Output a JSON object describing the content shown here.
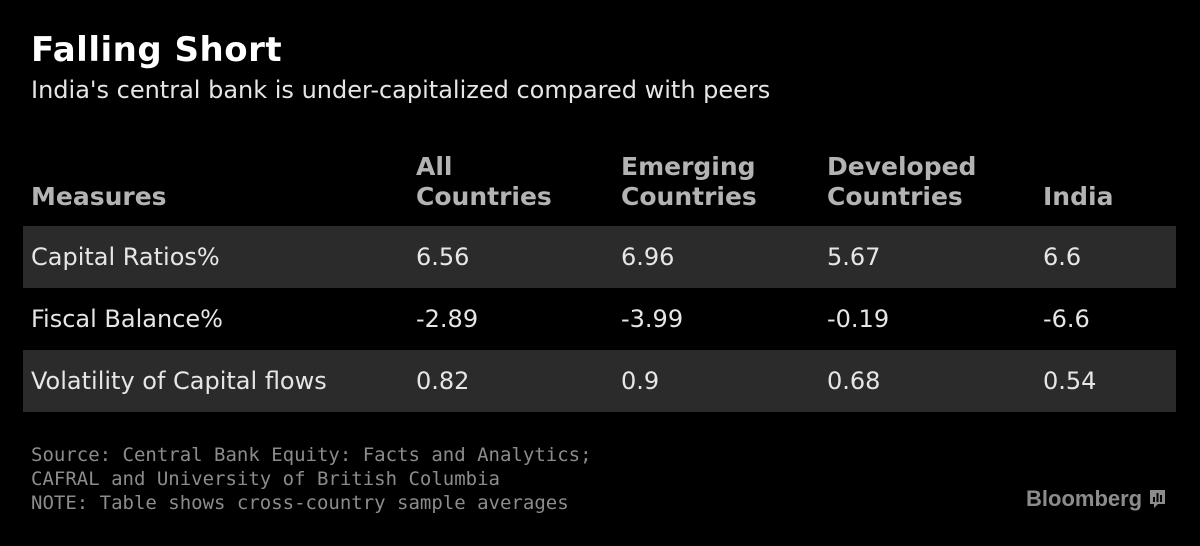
{
  "header": {
    "title": "Falling Short",
    "subtitle": "India's central bank is under-capitalized compared with peers"
  },
  "chart_data": {
    "type": "table",
    "columns": [
      "Measures",
      "All\nCountries",
      "Emerging\nCountries",
      "Developed\nCountries",
      "India"
    ],
    "rows": [
      {
        "measure": "Capital Ratios%",
        "values": [
          "6.56",
          "6.96",
          "5.67",
          "6.6"
        ]
      },
      {
        "measure": "Fiscal Balance%",
        "values": [
          "-2.89",
          "-3.99",
          "-0.19",
          "-6.6"
        ]
      },
      {
        "measure": "Volatility of Capital flows",
        "values": [
          "0.82",
          "0.9",
          "0.68",
          "0.54"
        ]
      }
    ],
    "row_shading": [
      "#2b2b2b",
      "#000000",
      "#2b2b2b"
    ]
  },
  "footer": {
    "source_line1": "Source: Central Bank Equity: Facts and Analytics;",
    "source_line2": "CAFRAL and University of British Columbia",
    "note": "NOTE: Table shows cross-country sample averages",
    "brand": "Bloomberg",
    "brand_icon": "bloomberg-chart-icon"
  }
}
